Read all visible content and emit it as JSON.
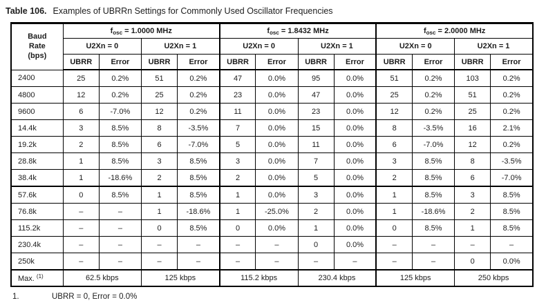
{
  "title": {
    "label": "Table 106.",
    "text": "Examples of UBRRn Settings for Commonly Used Oscillator Frequencies"
  },
  "table": {
    "baud_header_lines": [
      "Baud",
      "Rate",
      "(bps)"
    ],
    "freq_groups": [
      {
        "f": "f",
        "sub": "osc",
        "rest": " = 1.0000 MHz"
      },
      {
        "f": "f",
        "sub": "osc",
        "rest": " = 1.8432 MHz"
      },
      {
        "f": "f",
        "sub": "osc",
        "rest": " = 2.0000 MHz"
      }
    ],
    "u2x_headers": [
      "U2Xn = 0",
      "U2Xn = 1",
      "U2Xn = 0",
      "U2Xn = 1",
      "U2Xn = 0",
      "U2Xn = 1"
    ],
    "col_headers": [
      "UBRR",
      "Error",
      "UBRR",
      "Error",
      "UBRR",
      "Error",
      "UBRR",
      "Error",
      "UBRR",
      "Error",
      "UBRR",
      "Error"
    ],
    "rows": [
      {
        "baud": "2400",
        "cells": [
          "25",
          "0.2%",
          "51",
          "0.2%",
          "47",
          "0.0%",
          "95",
          "0.0%",
          "51",
          "0.2%",
          "103",
          "0.2%"
        ]
      },
      {
        "baud": "4800",
        "cells": [
          "12",
          "0.2%",
          "25",
          "0.2%",
          "23",
          "0.0%",
          "47",
          "0.0%",
          "25",
          "0.2%",
          "51",
          "0.2%"
        ]
      },
      {
        "baud": "9600",
        "cells": [
          "6",
          "-7.0%",
          "12",
          "0.2%",
          "11",
          "0.0%",
          "23",
          "0.0%",
          "12",
          "0.2%",
          "25",
          "0.2%"
        ]
      },
      {
        "baud": "14.4k",
        "cells": [
          "3",
          "8.5%",
          "8",
          "-3.5%",
          "7",
          "0.0%",
          "15",
          "0.0%",
          "8",
          "-3.5%",
          "16",
          "2.1%"
        ]
      },
      {
        "baud": "19.2k",
        "cells": [
          "2",
          "8.5%",
          "6",
          "-7.0%",
          "5",
          "0.0%",
          "11",
          "0.0%",
          "6",
          "-7.0%",
          "12",
          "0.2%"
        ]
      },
      {
        "baud": "28.8k",
        "cells": [
          "1",
          "8.5%",
          "3",
          "8.5%",
          "3",
          "0.0%",
          "7",
          "0.0%",
          "3",
          "8.5%",
          "8",
          "-3.5%"
        ]
      },
      {
        "baud": "38.4k",
        "cells": [
          "1",
          "-18.6%",
          "2",
          "8.5%",
          "2",
          "0.0%",
          "5",
          "0.0%",
          "2",
          "8.5%",
          "6",
          "-7.0%"
        ]
      },
      {
        "baud": "57.6k",
        "cells": [
          "0",
          "8.5%",
          "1",
          "8.5%",
          "1",
          "0.0%",
          "3",
          "0.0%",
          "1",
          "8.5%",
          "3",
          "8.5%"
        ]
      },
      {
        "baud": "76.8k",
        "cells": [
          "–",
          "–",
          "1",
          "-18.6%",
          "1",
          "-25.0%",
          "2",
          "0.0%",
          "1",
          "-18.6%",
          "2",
          "8.5%"
        ]
      },
      {
        "baud": "115.2k",
        "cells": [
          "–",
          "–",
          "0",
          "8.5%",
          "0",
          "0.0%",
          "1",
          "0.0%",
          "0",
          "8.5%",
          "1",
          "8.5%"
        ]
      },
      {
        "baud": "230.4k",
        "cells": [
          "–",
          "–",
          "–",
          "–",
          "–",
          "–",
          "0",
          "0.0%",
          "–",
          "–",
          "–",
          "–"
        ]
      },
      {
        "baud": "250k",
        "cells": [
          "–",
          "–",
          "–",
          "–",
          "–",
          "–",
          "–",
          "–",
          "–",
          "–",
          "0",
          "0.0%"
        ]
      }
    ],
    "max_row": {
      "label": "Max.",
      "sup": "(1)",
      "values": [
        "62.5 kbps",
        "125 kbps",
        "115.2 kbps",
        "230.4 kbps",
        "125 kbps",
        "250 kbps"
      ]
    }
  },
  "footnote": {
    "num": "1.",
    "text": "UBRR = 0, Error = 0.0%"
  }
}
